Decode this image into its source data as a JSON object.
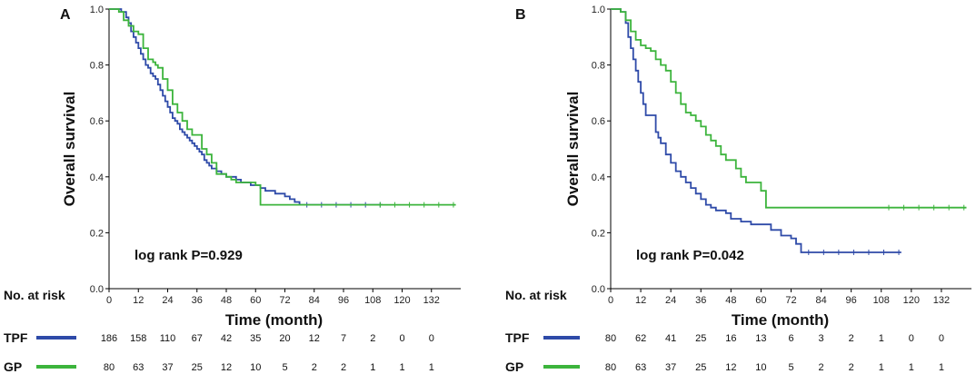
{
  "chart_data": [
    {
      "type": "line",
      "panel_label": "A",
      "ylabel": "Overall survival",
      "xlabel": "Time (month)",
      "xlim": [
        0,
        144
      ],
      "ylim": [
        0,
        1.0
      ],
      "xticks": [
        0,
        12,
        24,
        36,
        48,
        60,
        72,
        84,
        96,
        108,
        120,
        132
      ],
      "yticks": [
        "0.0",
        "0.2",
        "0.4",
        "0.6",
        "0.8",
        "1.0"
      ],
      "annotation": "log rank P=0.929",
      "risk_table_title": "No. at risk",
      "series": [
        {
          "name": "TPF",
          "color": "#2e4aa8",
          "x": [
            0,
            3,
            5,
            7,
            8,
            9,
            10,
            11,
            12,
            13,
            14,
            15,
            16,
            17,
            18,
            19,
            20,
            21,
            22,
            23,
            24,
            25,
            26,
            27,
            28,
            29,
            30,
            31,
            32,
            33,
            34,
            35,
            36,
            37,
            38,
            39,
            40,
            41,
            42,
            44,
            46,
            48,
            50,
            52,
            54,
            56,
            58,
            60,
            62,
            64,
            66,
            68,
            70,
            72,
            74,
            76,
            78,
            80,
            96,
            112
          ],
          "y": [
            1.0,
            1.0,
            0.99,
            0.97,
            0.95,
            0.92,
            0.9,
            0.88,
            0.86,
            0.84,
            0.82,
            0.8,
            0.79,
            0.77,
            0.76,
            0.75,
            0.73,
            0.71,
            0.69,
            0.67,
            0.65,
            0.63,
            0.61,
            0.6,
            0.59,
            0.57,
            0.56,
            0.55,
            0.54,
            0.53,
            0.52,
            0.51,
            0.5,
            0.49,
            0.48,
            0.46,
            0.45,
            0.44,
            0.43,
            0.42,
            0.41,
            0.4,
            0.4,
            0.39,
            0.38,
            0.38,
            0.37,
            0.37,
            0.36,
            0.35,
            0.35,
            0.34,
            0.34,
            0.33,
            0.32,
            0.31,
            0.3,
            0.3,
            0.3,
            0.3
          ]
        },
        {
          "name": "GP",
          "color": "#3cb43c",
          "x": [
            0,
            4,
            6,
            8,
            10,
            12,
            14,
            16,
            18,
            19,
            20,
            22,
            24,
            26,
            28,
            30,
            32,
            34,
            36,
            38,
            40,
            42,
            44,
            48,
            50,
            52,
            56,
            60,
            62,
            72,
            84,
            96,
            108,
            120,
            132,
            142
          ],
          "y": [
            1.0,
            0.99,
            0.96,
            0.94,
            0.92,
            0.91,
            0.86,
            0.82,
            0.81,
            0.8,
            0.79,
            0.75,
            0.71,
            0.66,
            0.63,
            0.6,
            0.57,
            0.55,
            0.55,
            0.5,
            0.48,
            0.45,
            0.41,
            0.4,
            0.39,
            0.38,
            0.38,
            0.37,
            0.3,
            0.3,
            0.3,
            0.3,
            0.3,
            0.3,
            0.3,
            0.3
          ]
        }
      ],
      "risk_table": [
        {
          "group": "TPF",
          "color": "#2e4aa8",
          "values": [
            "186",
            "158",
            "110",
            "67",
            "42",
            "35",
            "20",
            "12",
            "7",
            "2",
            "0",
            "0"
          ]
        },
        {
          "group": "GP",
          "color": "#3cb43c",
          "values": [
            "80",
            "63",
            "37",
            "25",
            "12",
            "10",
            "5",
            "2",
            "2",
            "1",
            "1",
            "1"
          ]
        }
      ]
    },
    {
      "type": "line",
      "panel_label": "B",
      "ylabel": "Overall survival",
      "xlabel": "Time (month)",
      "xlim": [
        0,
        144
      ],
      "ylim": [
        0,
        1.0
      ],
      "xticks": [
        0,
        12,
        24,
        36,
        48,
        60,
        72,
        84,
        96,
        108,
        120,
        132
      ],
      "yticks": [
        "0.0",
        "0.2",
        "0.4",
        "0.6",
        "0.8",
        "1.0"
      ],
      "annotation": "log rank P=0.042",
      "risk_table_title": "No. at risk",
      "series": [
        {
          "name": "TPF",
          "color": "#2e4aa8",
          "x": [
            0,
            4,
            6,
            7,
            8,
            9,
            10,
            11,
            12,
            13,
            14,
            16,
            18,
            19,
            20,
            22,
            24,
            26,
            28,
            30,
            32,
            34,
            36,
            38,
            40,
            42,
            44,
            46,
            48,
            52,
            56,
            60,
            64,
            68,
            72,
            74,
            76,
            80,
            96,
            116
          ],
          "y": [
            1.0,
            0.99,
            0.95,
            0.9,
            0.86,
            0.82,
            0.78,
            0.74,
            0.7,
            0.66,
            0.62,
            0.62,
            0.56,
            0.54,
            0.52,
            0.48,
            0.45,
            0.42,
            0.4,
            0.38,
            0.36,
            0.34,
            0.32,
            0.3,
            0.29,
            0.28,
            0.28,
            0.27,
            0.25,
            0.24,
            0.23,
            0.23,
            0.21,
            0.19,
            0.18,
            0.16,
            0.13,
            0.13,
            0.13,
            0.13
          ]
        },
        {
          "name": "GP",
          "color": "#3cb43c",
          "x": [
            0,
            4,
            6,
            8,
            10,
            12,
            14,
            16,
            18,
            20,
            22,
            24,
            26,
            28,
            30,
            32,
            34,
            36,
            38,
            40,
            42,
            44,
            46,
            48,
            50,
            52,
            54,
            56,
            58,
            60,
            62,
            72,
            84,
            96,
            108,
            120,
            132,
            142
          ],
          "y": [
            1.0,
            0.99,
            0.96,
            0.92,
            0.89,
            0.87,
            0.86,
            0.85,
            0.82,
            0.8,
            0.78,
            0.74,
            0.7,
            0.66,
            0.63,
            0.62,
            0.6,
            0.58,
            0.55,
            0.53,
            0.51,
            0.48,
            0.46,
            0.46,
            0.43,
            0.4,
            0.38,
            0.38,
            0.38,
            0.35,
            0.29,
            0.29,
            0.29,
            0.29,
            0.29,
            0.29,
            0.29,
            0.29
          ]
        }
      ],
      "risk_table": [
        {
          "group": "TPF",
          "color": "#2e4aa8",
          "values": [
            "80",
            "62",
            "41",
            "25",
            "16",
            "13",
            "6",
            "3",
            "2",
            "1",
            "0",
            "0"
          ]
        },
        {
          "group": "GP",
          "color": "#3cb43c",
          "values": [
            "80",
            "63",
            "37",
            "25",
            "12",
            "10",
            "5",
            "2",
            "2",
            "1",
            "1",
            "1"
          ]
        }
      ]
    }
  ]
}
